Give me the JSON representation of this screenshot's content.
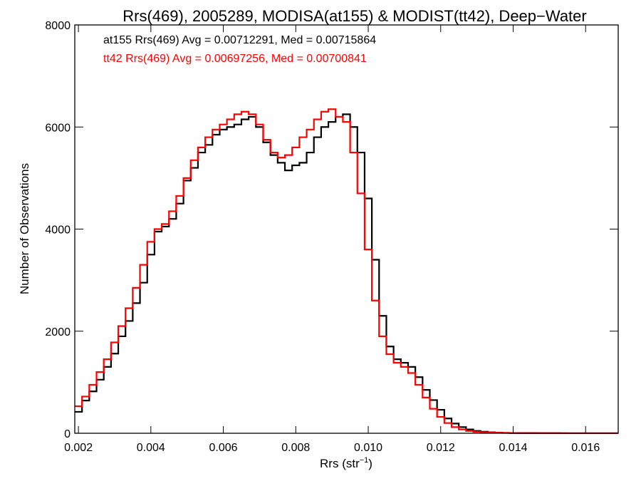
{
  "chart_data": {
    "type": "line",
    "title": "Rrs(469), 2005289, MODISA(at155) & MODIST(tt42), Deep−Water",
    "xlabel": "Rrs (str",
    "xlabel_sup": "−1",
    "xlabel_close": ")",
    "ylabel": "Number of Observations",
    "xlim": [
      0.0019,
      0.0169
    ],
    "ylim": [
      0,
      8000
    ],
    "xticks": [
      {
        "value": 0.002,
        "label": "0.002"
      },
      {
        "value": 0.004,
        "label": "0.004"
      },
      {
        "value": 0.006,
        "label": "0.006"
      },
      {
        "value": 0.008,
        "label": "0.008"
      },
      {
        "value": 0.01,
        "label": "0.010"
      },
      {
        "value": 0.012,
        "label": "0.012"
      },
      {
        "value": 0.014,
        "label": "0.014"
      },
      {
        "value": 0.016,
        "label": "0.016"
      }
    ],
    "yticks": [
      {
        "value": 0,
        "label": "0"
      },
      {
        "value": 2000,
        "label": "2000"
      },
      {
        "value": 4000,
        "label": "4000"
      },
      {
        "value": 6000,
        "label": "6000"
      },
      {
        "value": 8000,
        "label": "8000"
      }
    ],
    "grid": false,
    "series": [
      {
        "name": "at155",
        "annotation": "at155 Rrs(469) Avg = 0.00712291, Med = 0.00715864",
        "color": "#000000",
        "x": [
          0.0019,
          0.0021,
          0.0023,
          0.0025,
          0.0027,
          0.0029,
          0.0031,
          0.0033,
          0.0035,
          0.0037,
          0.0039,
          0.0041,
          0.0043,
          0.0045,
          0.0047,
          0.0049,
          0.0051,
          0.0053,
          0.0055,
          0.0057,
          0.0059,
          0.0061,
          0.0063,
          0.0065,
          0.0067,
          0.0069,
          0.0071,
          0.0073,
          0.0075,
          0.0077,
          0.0079,
          0.0081,
          0.0083,
          0.0085,
          0.0087,
          0.0089,
          0.0091,
          0.0093,
          0.0095,
          0.0097,
          0.0099,
          0.0101,
          0.0103,
          0.0105,
          0.0107,
          0.0109,
          0.0111,
          0.0113,
          0.0115,
          0.0117,
          0.0119,
          0.0121,
          0.0123,
          0.0125,
          0.0127,
          0.0129,
          0.0131,
          0.0133,
          0.0135,
          0.0137,
          0.0139,
          0.0141,
          0.0143,
          0.0145,
          0.0147,
          0.0149,
          0.0151,
          0.0153,
          0.0155,
          0.0157,
          0.0159,
          0.0161,
          0.0163,
          0.0165,
          0.0167,
          0.0169
        ],
        "y": [
          420,
          640,
          820,
          1050,
          1300,
          1560,
          1900,
          2200,
          2550,
          2950,
          3500,
          3950,
          4050,
          4200,
          4500,
          4950,
          5200,
          5500,
          5650,
          5850,
          5950,
          6000,
          6050,
          6150,
          6200,
          6000,
          5700,
          5450,
          5300,
          5150,
          5250,
          5300,
          5500,
          5800,
          6000,
          6100,
          6200,
          6250,
          6000,
          5500,
          4600,
          3400,
          2300,
          1700,
          1450,
          1380,
          1300,
          1100,
          850,
          650,
          460,
          290,
          190,
          120,
          75,
          45,
          30,
          20,
          12,
          8,
          5,
          4,
          3,
          3,
          2,
          2,
          2,
          1,
          1,
          1,
          1,
          1,
          1,
          1,
          1,
          1
        ]
      },
      {
        "name": "tt42",
        "annotation": "tt42 Rrs(469) Avg = 0.00697256, Med = 0.00700841",
        "color": "#ff0000",
        "x": [
          0.0019,
          0.0021,
          0.0023,
          0.0025,
          0.0027,
          0.0029,
          0.0031,
          0.0033,
          0.0035,
          0.0037,
          0.0039,
          0.0041,
          0.0043,
          0.0045,
          0.0047,
          0.0049,
          0.0051,
          0.0053,
          0.0055,
          0.0057,
          0.0059,
          0.0061,
          0.0063,
          0.0065,
          0.0067,
          0.0069,
          0.0071,
          0.0073,
          0.0075,
          0.0077,
          0.0079,
          0.0081,
          0.0083,
          0.0085,
          0.0087,
          0.0089,
          0.0091,
          0.0093,
          0.0095,
          0.0097,
          0.0099,
          0.0101,
          0.0103,
          0.0105,
          0.0107,
          0.0109,
          0.0111,
          0.0113,
          0.0115,
          0.0117,
          0.0119,
          0.0121,
          0.0123,
          0.0125,
          0.0127,
          0.0129,
          0.0131,
          0.0133,
          0.0135,
          0.0137,
          0.0139,
          0.0141,
          0.0143,
          0.0145,
          0.0147,
          0.0149,
          0.0151,
          0.0153,
          0.0155,
          0.0157,
          0.0159,
          0.0161,
          0.0163,
          0.0165,
          0.0167,
          0.0169
        ],
        "y": [
          530,
          720,
          950,
          1200,
          1450,
          1780,
          2100,
          2450,
          2850,
          3300,
          3750,
          4000,
          4100,
          4350,
          4650,
          5000,
          5350,
          5600,
          5800,
          5950,
          6050,
          6150,
          6250,
          6300,
          6250,
          6050,
          5750,
          5500,
          5400,
          5450,
          5600,
          5800,
          5950,
          6150,
          6300,
          6350,
          6200,
          6100,
          5500,
          4700,
          3600,
          2600,
          1900,
          1550,
          1380,
          1300,
          1180,
          950,
          700,
          480,
          320,
          200,
          120,
          75,
          45,
          30,
          20,
          15,
          10,
          7,
          5,
          4,
          3,
          3,
          2,
          2,
          2,
          2,
          1,
          1,
          1,
          1,
          1,
          1,
          1,
          1
        ]
      }
    ]
  }
}
